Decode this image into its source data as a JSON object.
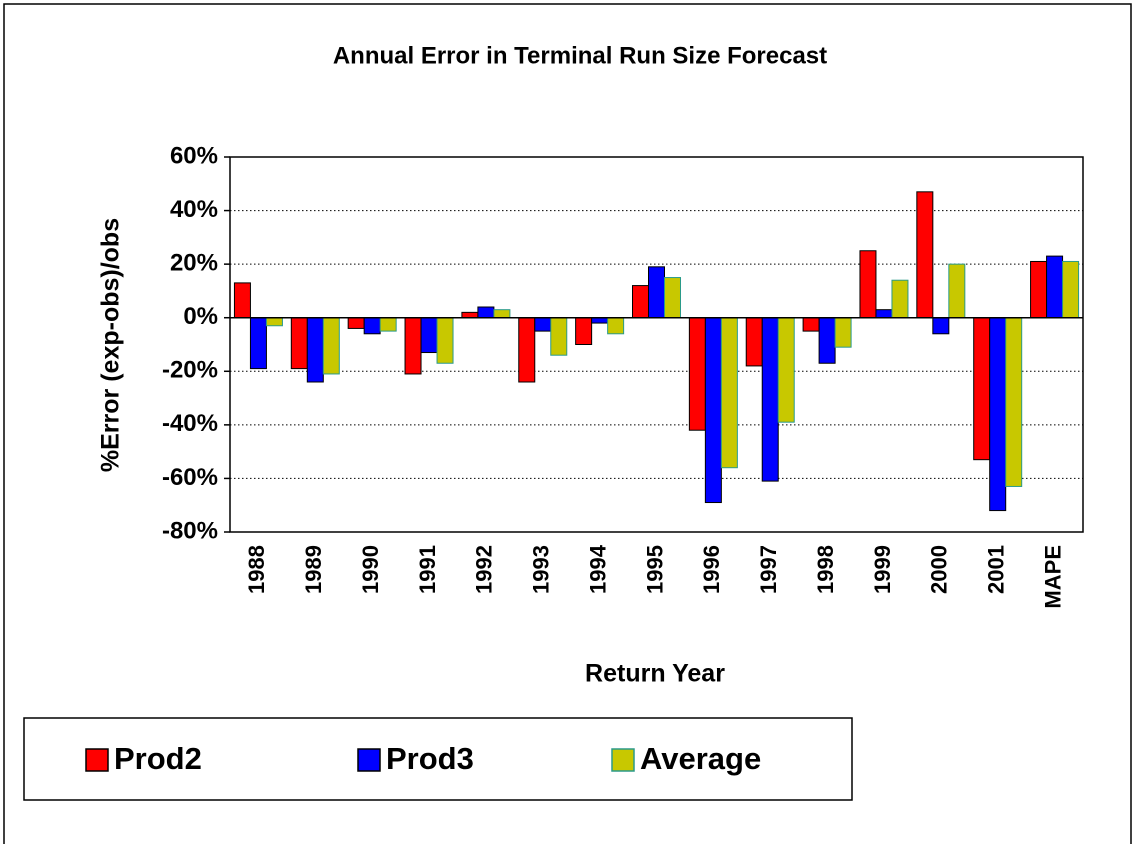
{
  "chart_data": {
    "type": "bar",
    "title": "Annual Error in Terminal Run Size Forecast",
    "x_label": "Return Year",
    "y_label": "%Error (exp-obs)/obs",
    "categories": [
      "1988",
      "1989",
      "1990",
      "1991",
      "1992",
      "1993",
      "1994",
      "1995",
      "1996",
      "1997",
      "1998",
      "1999",
      "2000",
      "2001",
      "MAPE"
    ],
    "series": [
      {
        "name": "Prod2",
        "color": "#ff0000",
        "values": [
          13,
          -19,
          -4,
          -21,
          2,
          -24,
          -10,
          12,
          -42,
          -18,
          -5,
          25,
          47,
          -53,
          21
        ]
      },
      {
        "name": "Prod3",
        "color": "#0000ff",
        "values": [
          -19,
          -24,
          -6,
          -13,
          4,
          -5,
          -2,
          19,
          -69,
          -61,
          -17,
          3,
          -6,
          -72,
          23
        ]
      },
      {
        "name": "Average",
        "color": "#c8c800",
        "values": [
          -3,
          -21,
          -5,
          -17,
          3,
          -14,
          -6,
          15,
          -56,
          -39,
          -11,
          14,
          20,
          -63,
          21
        ]
      }
    ],
    "ylim": [
      -80,
      60
    ],
    "yticks": [
      {
        "value": -80,
        "label": "-80%"
      },
      {
        "value": -60,
        "label": "-60%"
      },
      {
        "value": -40,
        "label": "-40%"
      },
      {
        "value": -20,
        "label": "-20%"
      },
      {
        "value": 0,
        "label": "0%"
      },
      {
        "value": 20,
        "label": "20%"
      },
      {
        "value": 40,
        "label": "40%"
      },
      {
        "value": 60,
        "label": "60%"
      }
    ],
    "grid": true
  }
}
